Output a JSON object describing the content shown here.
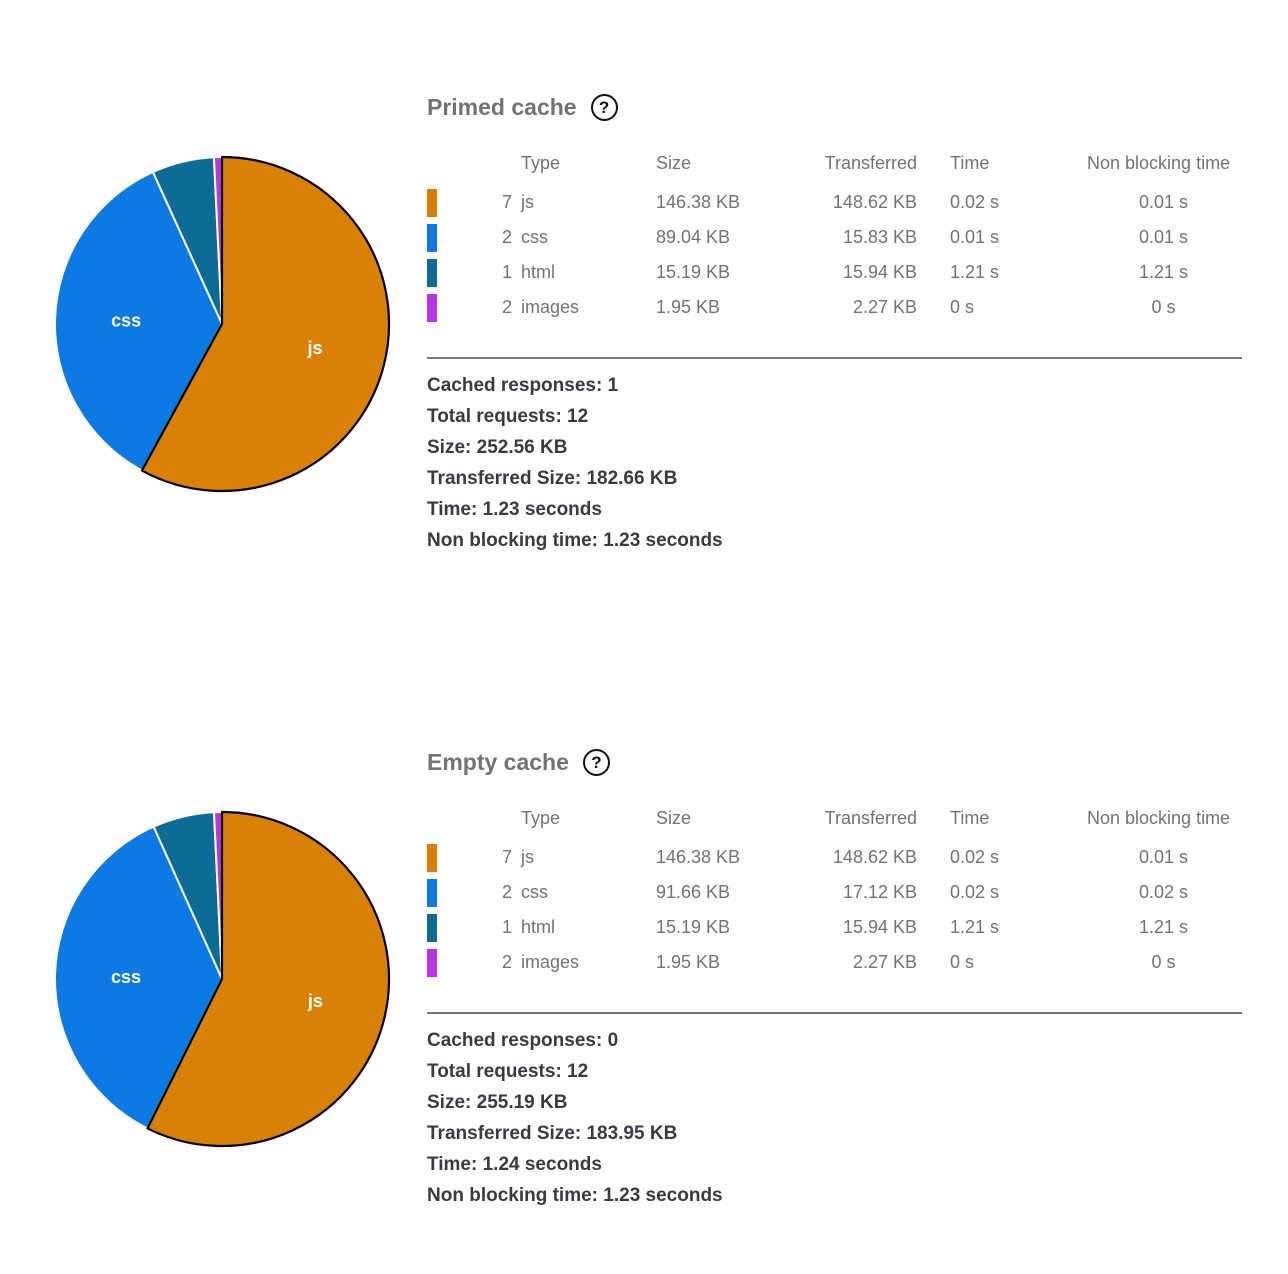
{
  "colors": {
    "js": "#d88106",
    "css": "#0d7ae4",
    "html": "#0c6c96",
    "images": "#b935e6",
    "table_text": "#737373",
    "summary_text": "#3a3944",
    "section_title": "#737373",
    "divider": "#77777c",
    "largest_slice_outline": "#000000",
    "slice_separator": "#ffffff",
    "pie_label": "#ffffff"
  },
  "sections": [
    {
      "title": "Primed cache",
      "help_glyph": "?",
      "table": {
        "headers": {
          "type": "Type",
          "size": "Size",
          "transferred": "Transferred",
          "time": "Time",
          "non_blocking": "Non blocking time"
        },
        "rows": [
          {
            "count": "7",
            "type": "js",
            "size": "146.38 KB",
            "transferred": "148.62 KB",
            "time": "0.02 s",
            "non_blocking_time": "0.01 s"
          },
          {
            "count": "2",
            "type": "css",
            "size": "89.04 KB",
            "transferred": "15.83 KB",
            "time": "0.01 s",
            "non_blocking_time": "0.01 s"
          },
          {
            "count": "1",
            "type": "html",
            "size": "15.19 KB",
            "transferred": "15.94 KB",
            "time": "1.21 s",
            "non_blocking_time": "1.21 s"
          },
          {
            "count": "2",
            "type": "images",
            "size": "1.95 KB",
            "transferred": "2.27 KB",
            "time": "0 s",
            "non_blocking_time": "0 s"
          }
        ]
      },
      "summary": [
        "Cached responses: 1",
        "Total requests: 12",
        "Size: 252.56 KB",
        "Transferred Size: 182.66 KB",
        "Time: 1.23 seconds",
        "Non blocking time: 1.23 seconds"
      ]
    },
    {
      "title": "Empty cache",
      "help_glyph": "?",
      "table": {
        "headers": {
          "type": "Type",
          "size": "Size",
          "transferred": "Transferred",
          "time": "Time",
          "non_blocking": "Non blocking time"
        },
        "rows": [
          {
            "count": "7",
            "type": "js",
            "size": "146.38 KB",
            "transferred": "148.62 KB",
            "time": "0.02 s",
            "non_blocking_time": "0.01 s"
          },
          {
            "count": "2",
            "type": "css",
            "size": "91.66 KB",
            "transferred": "17.12 KB",
            "time": "0.02 s",
            "non_blocking_time": "0.02 s"
          },
          {
            "count": "1",
            "type": "html",
            "size": "15.19 KB",
            "transferred": "15.94 KB",
            "time": "1.21 s",
            "non_blocking_time": "1.21 s"
          },
          {
            "count": "2",
            "type": "images",
            "size": "1.95 KB",
            "transferred": "2.27 KB",
            "time": "0 s",
            "non_blocking_time": "0 s"
          }
        ]
      },
      "summary": [
        "Cached responses: 0",
        "Total requests: 12",
        "Size: 255.19 KB",
        "Transferred Size: 183.95 KB",
        "Time: 1.24 seconds",
        "Non blocking time: 1.23 seconds"
      ]
    }
  ],
  "chart_data": [
    {
      "type": "pie",
      "title": "Primed cache",
      "labels": [
        "js",
        "css",
        "html",
        "images"
      ],
      "values_kb": [
        146.38,
        89.04,
        15.19,
        1.95
      ],
      "colors": [
        "#d88106",
        "#0d7ae4",
        "#0c6c96",
        "#b935e6"
      ],
      "visible_slice_labels": [
        "js",
        "css"
      ],
      "start_angle_deg": 0,
      "direction": "clockwise",
      "largest_slice": "js"
    },
    {
      "type": "pie",
      "title": "Empty cache",
      "labels": [
        "js",
        "css",
        "html",
        "images"
      ],
      "values_kb": [
        146.38,
        91.66,
        15.19,
        1.95
      ],
      "colors": [
        "#d88106",
        "#0d7ae4",
        "#0c6c96",
        "#b935e6"
      ],
      "visible_slice_labels": [
        "js",
        "css"
      ],
      "start_angle_deg": 0,
      "direction": "clockwise",
      "largest_slice": "js"
    }
  ]
}
